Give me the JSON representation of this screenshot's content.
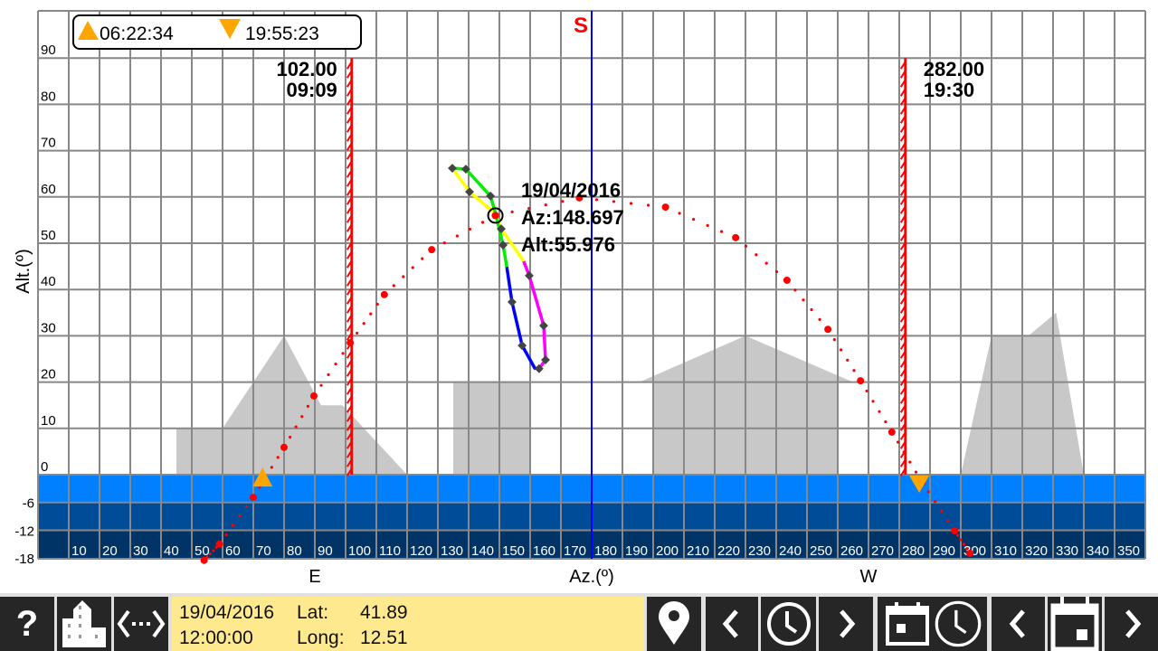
{
  "legend": {
    "sunrise_time": "06:22:34",
    "sunset_time": "19:55:23"
  },
  "markers": [
    {
      "az": 102,
      "label_value": "102.00",
      "label_time": "09:09"
    },
    {
      "az": 282,
      "label_value": "282.00",
      "label_time": "19:30"
    }
  ],
  "sun_info": {
    "date": "19/04/2016",
    "az": "Az:148.697",
    "alt": "Alt:55.976",
    "az_value": 148.697,
    "alt_value": 55.976
  },
  "axes": {
    "south_label": "S",
    "east_label": "E",
    "west_label": "W",
    "x_label": "Az.(º)",
    "y_label": "Alt.(º)",
    "y_ticks": [
      "90",
      "80",
      "70",
      "60",
      "50",
      "40",
      "30",
      "20",
      "10",
      "0",
      "-6",
      "-12",
      "-18"
    ],
    "x_ticks": [
      "10",
      "20",
      "30",
      "40",
      "50",
      "60",
      "70",
      "80",
      "90",
      "100",
      "110",
      "120",
      "130",
      "140",
      "150",
      "160",
      "170",
      "180",
      "190",
      "200",
      "210",
      "220",
      "230",
      "240",
      "250",
      "260",
      "270",
      "280",
      "290",
      "300",
      "310",
      "320",
      "330",
      "340",
      "350"
    ]
  },
  "colors": {
    "grid": "#888888",
    "twilight_civil": "#0080ff",
    "twilight_nautical": "#004c99",
    "twilight_astro": "#003366",
    "obstacle": "#c8c8c8",
    "sun_path": "#ff0000",
    "south_line": "#0000ff",
    "marker": "#ff0000",
    "triangle": "#ffa500"
  },
  "obstacles": [
    [
      [
        45,
        0
      ],
      [
        45,
        10
      ],
      [
        60,
        10
      ],
      [
        80,
        30
      ],
      [
        92,
        15
      ],
      [
        99,
        15
      ],
      [
        120,
        0
      ]
    ],
    [
      [
        135,
        0
      ],
      [
        135,
        20
      ],
      [
        160,
        20
      ],
      [
        160,
        0
      ]
    ],
    [
      [
        200,
        0
      ],
      [
        200,
        20
      ],
      [
        195.5,
        20
      ],
      [
        230,
        30
      ],
      [
        265,
        20
      ],
      [
        260,
        20
      ],
      [
        260,
        0
      ]
    ],
    [
      [
        300,
        0
      ],
      [
        310,
        30
      ],
      [
        322,
        30
      ],
      [
        331,
        35
      ],
      [
        340,
        0
      ]
    ]
  ],
  "sun_path_hourly": [
    [
      54,
      -18.5
    ],
    [
      59,
      -15
    ],
    [
      70,
      -4.9
    ],
    [
      80,
      5.9
    ],
    [
      89.7,
      17
    ],
    [
      101.5,
      28.5
    ],
    [
      112.6,
      38.9
    ],
    [
      128,
      48.6
    ],
    [
      148.7,
      56
    ],
    [
      176,
      59.8
    ],
    [
      204,
      57.8
    ],
    [
      226.8,
      51.2
    ],
    [
      243.5,
      42
    ],
    [
      256.8,
      31.4
    ],
    [
      267.4,
      20.3
    ],
    [
      277.6,
      9.2
    ],
    [
      287.4,
      -1.6
    ],
    [
      298,
      -12.1
    ],
    [
      303,
      -17
    ]
  ],
  "sunrise": {
    "az": 73,
    "alt": -0.8
  },
  "sunset": {
    "az": 286.5,
    "alt": -0.8
  },
  "analemma": {
    "segments": [
      {
        "color": "#ffff00",
        "points": [
          [
            134.7,
            66.2
          ],
          [
            140.3,
            61.1
          ],
          [
            148.8,
            56.3
          ],
          [
            150.6,
            53.1
          ],
          [
            157.9,
            46.1
          ]
        ]
      },
      {
        "color": "#ff00ff",
        "points": [
          [
            157.9,
            46.1
          ],
          [
            159.7,
            43
          ],
          [
            164.4,
            32.2
          ],
          [
            165,
            24.8
          ],
          [
            162.9,
            22.9
          ]
        ]
      },
      {
        "color": "#0000ff",
        "points": [
          [
            162.9,
            22.9
          ],
          [
            161.5,
            23
          ],
          [
            157.4,
            27.9
          ],
          [
            154.1,
            37.3
          ],
          [
            152.4,
            44.9
          ]
        ]
      },
      {
        "color": "#00ee00",
        "points": [
          [
            152.4,
            44.9
          ],
          [
            151.2,
            49.6
          ],
          [
            148.8,
            56.3
          ],
          [
            147.1,
            60.2
          ],
          [
            139.1,
            66
          ],
          [
            134.7,
            66.2
          ]
        ]
      }
    ],
    "diamonds": [
      [
        134.7,
        66.2
      ],
      [
        139.1,
        66
      ],
      [
        140.3,
        61.1
      ],
      [
        147.1,
        60.2
      ],
      [
        150.6,
        53.1
      ],
      [
        151.2,
        49.6
      ],
      [
        159.7,
        43
      ],
      [
        154.1,
        37.3
      ],
      [
        164.4,
        32.2
      ],
      [
        157.4,
        27.9
      ],
      [
        165,
        24.8
      ],
      [
        162.9,
        22.9
      ]
    ]
  },
  "info_panel": {
    "date": "19/04/2016",
    "time": "12:00:00",
    "lat_label": "Lat:",
    "lat": "41.89",
    "long_label": "Long:",
    "long": "12.51"
  },
  "toolbar": {
    "help_label": "?"
  }
}
